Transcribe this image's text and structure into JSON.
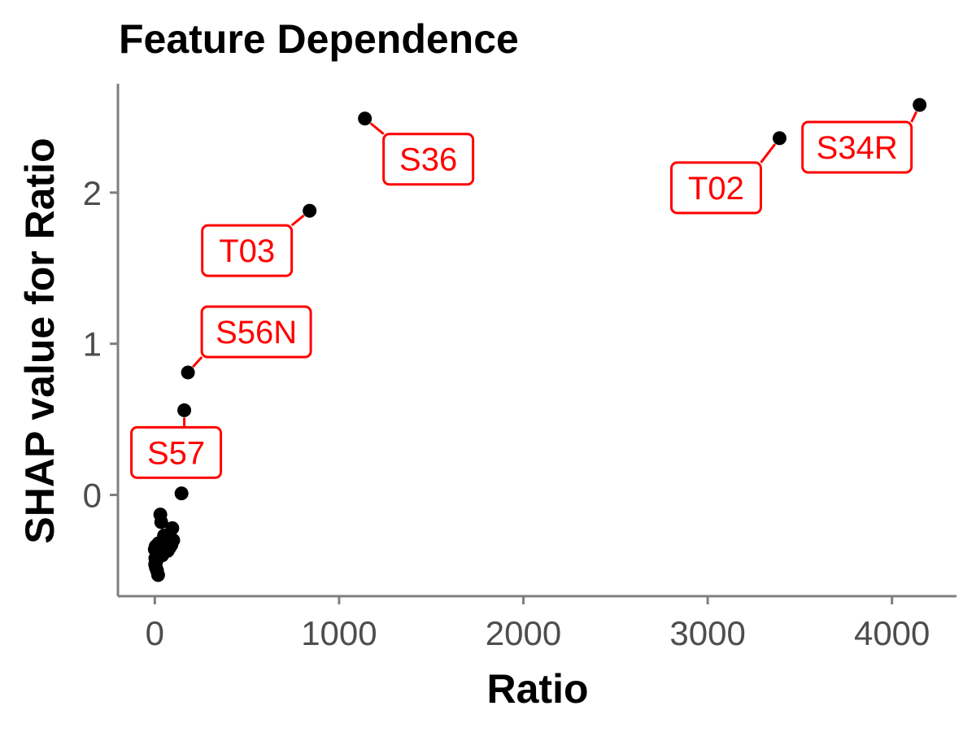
{
  "chart_data": {
    "type": "scatter",
    "title": "Feature Dependence",
    "xlabel": "Ratio",
    "ylabel": "SHAP value for Ratio",
    "xlim": [
      -200,
      4350
    ],
    "ylim": [
      -0.67,
      2.72
    ],
    "xticks": [
      0,
      1000,
      2000,
      3000,
      4000
    ],
    "yticks": [
      0,
      1,
      2
    ],
    "grid": false,
    "colors": {
      "points": "#000000",
      "annotation": "#ff0000",
      "axis": "#7f7f7f",
      "tick_label": "#4d4d4d"
    },
    "points": [
      {
        "x": 4150,
        "y": 2.58,
        "label": "S34R"
      },
      {
        "x": 1140,
        "y": 2.49,
        "label": "S36"
      },
      {
        "x": 3390,
        "y": 2.36,
        "label": "T02"
      },
      {
        "x": 840,
        "y": 1.88,
        "label": "T03"
      },
      {
        "x": 180,
        "y": 0.81,
        "label": "S56N"
      },
      {
        "x": 160,
        "y": 0.56,
        "label": "S57"
      },
      {
        "x": 145,
        "y": 0.01
      },
      {
        "x": 30,
        "y": -0.13
      },
      {
        "x": 35,
        "y": -0.18
      },
      {
        "x": 95,
        "y": -0.22
      },
      {
        "x": 50,
        "y": -0.27
      },
      {
        "x": 85,
        "y": -0.28
      },
      {
        "x": 100,
        "y": -0.3
      },
      {
        "x": 20,
        "y": -0.32
      },
      {
        "x": 60,
        "y": -0.33
      },
      {
        "x": 90,
        "y": -0.33
      },
      {
        "x": 5,
        "y": -0.34
      },
      {
        "x": 45,
        "y": -0.35
      },
      {
        "x": 80,
        "y": -0.35
      },
      {
        "x": 0,
        "y": -0.36
      },
      {
        "x": 10,
        "y": -0.37
      },
      {
        "x": 70,
        "y": -0.37
      },
      {
        "x": 15,
        "y": -0.39
      },
      {
        "x": 40,
        "y": -0.4
      },
      {
        "x": 3,
        "y": -0.42
      },
      {
        "x": 8,
        "y": -0.44
      },
      {
        "x": 2,
        "y": -0.46
      },
      {
        "x": 6,
        "y": -0.48
      },
      {
        "x": 12,
        "y": -0.5
      },
      {
        "x": 18,
        "y": -0.53
      }
    ]
  }
}
